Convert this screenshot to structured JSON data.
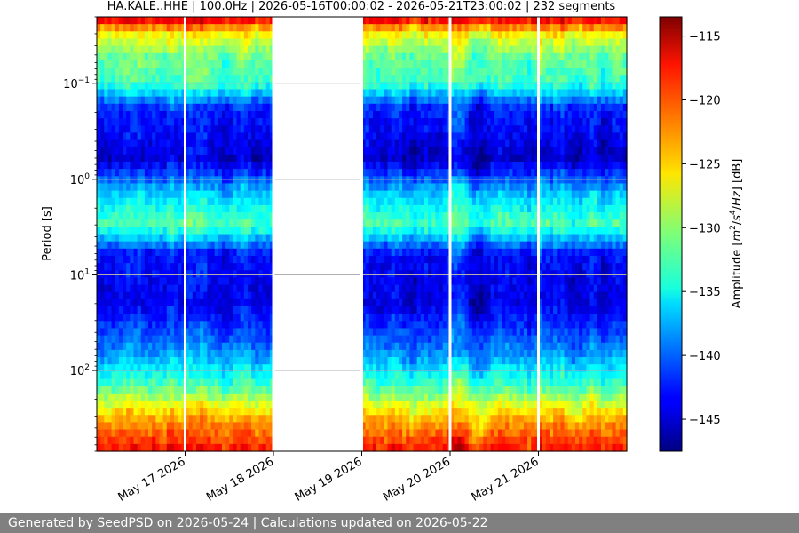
{
  "chart_data": {
    "type": "heatmap",
    "title": "HA.KALE..HHE | 100.0Hz | 2026-05-16T00:00:02 - 2026-05-21T23:00:02 | 232 segments",
    "ylabel": "Period [s]",
    "y_scale": "log",
    "y_inverted": true,
    "ylim": [
      0.02,
      700
    ],
    "y_ticks": [
      {
        "value": 0.1,
        "base": "10",
        "exp": "−1"
      },
      {
        "value": 1,
        "base": "10",
        "exp": "0"
      },
      {
        "value": 10,
        "base": "10",
        "exp": "1"
      },
      {
        "value": 100,
        "base": "10",
        "exp": "2"
      }
    ],
    "x_ticks": [
      "May 17 2026",
      "May 18 2026",
      "May 19 2026",
      "May 20 2026",
      "May 21 2026"
    ],
    "x_range_days": [
      0,
      6
    ],
    "data_gaps_days": [
      [
        2.0,
        3.0
      ]
    ],
    "grid": true,
    "colorbar": {
      "label": "Amplitude [m²/s⁴/Hz] [dB]",
      "label_parts": [
        "Amplitude [",
        "m",
        "2",
        "/",
        "s",
        "4",
        "/",
        "Hz",
        "] [dB]"
      ],
      "min": -147.5,
      "max": -113.5,
      "ticks": [
        -115,
        -120,
        -125,
        -130,
        -135,
        -140,
        -145
      ],
      "tick_labels": [
        "−115",
        "−120",
        "−125",
        "−130",
        "−135",
        "−140",
        "−145"
      ],
      "colormap": "jet"
    },
    "amplitude_profile_by_period": [
      {
        "period": 0.02,
        "db": -116
      },
      {
        "period": 0.03,
        "db": -126
      },
      {
        "period": 0.05,
        "db": -131
      },
      {
        "period": 0.1,
        "db": -133
      },
      {
        "period": 0.18,
        "db": -142
      },
      {
        "period": 0.6,
        "db": -145
      },
      {
        "period": 1.5,
        "db": -136
      },
      {
        "period": 3.0,
        "db": -132
      },
      {
        "period": 6.0,
        "db": -143
      },
      {
        "period": 20,
        "db": -144
      },
      {
        "period": 60,
        "db": -139
      },
      {
        "period": 150,
        "db": -132
      },
      {
        "period": 300,
        "db": -124
      },
      {
        "period": 700,
        "db": -118
      }
    ]
  },
  "footer": {
    "text": "Generated by SeedPSD on 2026-05-24 | Calculations updated on 2026-05-22"
  }
}
